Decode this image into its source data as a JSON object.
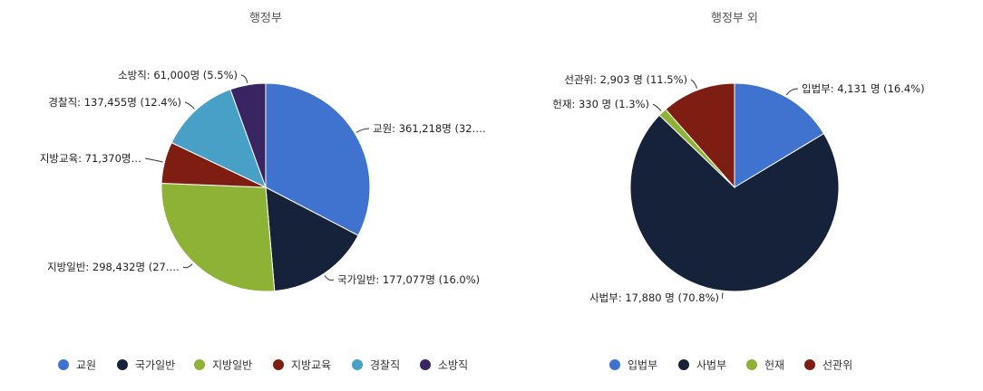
{
  "chart_data": [
    {
      "type": "pie",
      "title": "행정부",
      "labels": [
        "교원",
        "국가일반",
        "지방일반",
        "지방교육",
        "경찰직",
        "소방직"
      ],
      "values": [
        361218,
        177077,
        298432,
        71370,
        137455,
        61000
      ],
      "percents": [
        32.7,
        16.0,
        27.0,
        6.5,
        12.4,
        5.5
      ],
      "colors": [
        "#3f73cf",
        "#16213a",
        "#8db236",
        "#7e1e12",
        "#48a0c7",
        "#3a2563"
      ],
      "slice_labels": [
        "교원: 361,218명 (32.…",
        "국가일반: 177,077명 (16.0%)",
        "지방일반: 298,432명 (27.…",
        "지방교육: 71,370명…",
        "경찰직: 137,455명 (12.4%)",
        "소방직: 61,000명 (5.5%)"
      ],
      "legend_placement": "bottom"
    },
    {
      "type": "pie",
      "title": "행정부 외",
      "labels": [
        "입법부",
        "사법부",
        "헌재",
        "선관위"
      ],
      "values": [
        4131,
        17880,
        330,
        2903
      ],
      "percents": [
        16.4,
        70.8,
        1.3,
        11.5
      ],
      "colors": [
        "#3f73cf",
        "#16213a",
        "#8db236",
        "#7e1e12"
      ],
      "slice_labels": [
        "입법부: 4,131 명 (16.4%)",
        "사법부: 17,880 명 (70.8%)",
        "헌재: 330 명 (1.3%)",
        "선관위: 2,903 명 (11.5%)"
      ],
      "legend_placement": "bottom"
    }
  ]
}
